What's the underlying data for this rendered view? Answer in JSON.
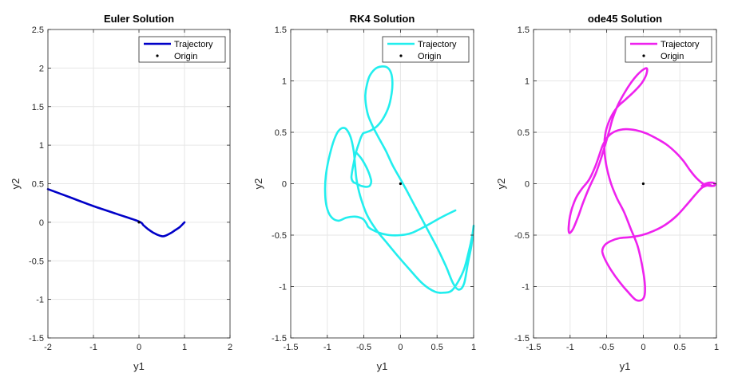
{
  "chart_data": [
    {
      "type": "line",
      "title": "Euler Solution",
      "xlabel": "y1",
      "ylabel": "y2",
      "xlim": [
        -2,
        2
      ],
      "ylim": [
        -1.5,
        2.5
      ],
      "xticks": [
        -2,
        -1,
        0,
        1,
        2
      ],
      "yticks": [
        -1.5,
        -1,
        -0.5,
        0,
        0.5,
        1,
        1.5,
        2,
        2.5
      ],
      "grid": true,
      "legend_position": "top-right",
      "series": [
        {
          "name": "Trajectory",
          "color": "#0000c8",
          "x": [
            -2.0,
            -1.5,
            -1.0,
            -0.5,
            0.0,
            0.1,
            0.2,
            0.3,
            0.4,
            0.5,
            0.55,
            0.6,
            0.7,
            0.8,
            0.9,
            1.0
          ],
          "y": [
            0.43,
            0.32,
            0.21,
            0.11,
            0.01,
            -0.04,
            -0.09,
            -0.13,
            -0.16,
            -0.18,
            -0.18,
            -0.17,
            -0.14,
            -0.1,
            -0.06,
            0.0
          ]
        },
        {
          "name": "Origin",
          "color": "#000000",
          "x": [
            0
          ],
          "y": [
            0
          ],
          "marker": "dot"
        }
      ]
    },
    {
      "type": "line",
      "title": "RK4 Solution",
      "xlabel": "y1",
      "ylabel": "y2",
      "xlim": [
        -1.5,
        1
      ],
      "ylim": [
        -1.5,
        1.5
      ],
      "xticks": [
        -1.5,
        -1,
        -0.5,
        0,
        0.5,
        1
      ],
      "yticks": [
        -1.5,
        -1,
        -0.5,
        0,
        0.5,
        1,
        1.5
      ],
      "grid": true,
      "legend_position": "top-right",
      "series": [
        {
          "name": "Trajectory",
          "color": "#22eeee",
          "x": [
            0.75,
            0.55,
            0.35,
            0.15,
            0.0,
            -0.15,
            -0.28,
            -0.38,
            -0.44,
            -0.47,
            -0.52,
            -0.62,
            -0.74,
            -0.85,
            -0.95,
            -1.01,
            -1.03,
            -1.02,
            -0.98,
            -0.92,
            -0.86,
            -0.8,
            -0.74,
            -0.68,
            -0.64,
            -0.62,
            -0.6,
            -0.55,
            -0.46,
            -0.33,
            -0.18,
            -0.04,
            0.12,
            0.3,
            0.47,
            0.6,
            0.7,
            0.79,
            0.87,
            0.93,
            0.98,
            1.0,
            0.97,
            0.92,
            0.87,
            0.8,
            0.72,
            0.62,
            0.5,
            0.35,
            0.2,
            0.05,
            -0.1,
            -0.2,
            -0.3,
            -0.38,
            -0.44,
            -0.47,
            -0.48,
            -0.46,
            -0.42,
            -0.34,
            -0.26,
            -0.18,
            -0.13,
            -0.11,
            -0.12,
            -0.16,
            -0.24,
            -0.32,
            -0.4,
            -0.47,
            -0.51,
            -0.54,
            -0.57,
            -0.61,
            -0.64,
            -0.66,
            -0.67,
            -0.65,
            -0.6,
            -0.54,
            -0.47,
            -0.42,
            -0.4,
            -0.41,
            -0.44,
            -0.48,
            -0.54,
            -0.6
          ],
          "y": [
            -0.26,
            -0.33,
            -0.41,
            -0.48,
            -0.5,
            -0.5,
            -0.48,
            -0.45,
            -0.42,
            -0.38,
            -0.34,
            -0.32,
            -0.33,
            -0.36,
            -0.32,
            -0.22,
            -0.08,
            0.08,
            0.24,
            0.4,
            0.5,
            0.54,
            0.53,
            0.45,
            0.32,
            0.18,
            0.04,
            -0.12,
            -0.3,
            -0.45,
            -0.58,
            -0.7,
            -0.83,
            -0.97,
            -1.05,
            -1.06,
            -1.04,
            -0.95,
            -0.83,
            -0.67,
            -0.51,
            -0.41,
            -0.6,
            -0.78,
            -0.97,
            -1.03,
            -0.97,
            -0.8,
            -0.62,
            -0.42,
            -0.22,
            -0.02,
            0.17,
            0.32,
            0.45,
            0.56,
            0.66,
            0.76,
            0.86,
            0.96,
            1.05,
            1.12,
            1.14,
            1.13,
            1.08,
            0.99,
            0.88,
            0.75,
            0.63,
            0.56,
            0.52,
            0.5,
            0.49,
            0.45,
            0.39,
            0.3,
            0.2,
            0.12,
            0.06,
            0.02,
            0.0,
            -0.02,
            -0.03,
            -0.02,
            0.02,
            0.06,
            0.12,
            0.18,
            0.25,
            0.3
          ],
          "order_note": ""
        },
        {
          "name": "Origin",
          "color": "#000000",
          "x": [
            0
          ],
          "y": [
            0
          ],
          "marker": "dot"
        }
      ]
    },
    {
      "type": "line",
      "title": "ode45 Solution",
      "xlabel": "y1",
      "ylabel": "y2",
      "xlim": [
        -1.5,
        1
      ],
      "ylim": [
        -1.5,
        1.5
      ],
      "xticks": [
        -1.5,
        -1,
        -0.5,
        0,
        0.5,
        1
      ],
      "yticks": [
        -1.5,
        -1,
        -0.5,
        0,
        0.5,
        1,
        1.5
      ],
      "grid": true,
      "legend_position": "top-right",
      "series": [
        {
          "name": "Trajectory",
          "color": "#ee22ee",
          "x": [
            0.8,
            0.85,
            0.9,
            0.95,
            0.98,
            0.96,
            0.9,
            0.84,
            0.78,
            0.72,
            0.64,
            0.55,
            0.45,
            0.32,
            0.18,
            0.04,
            -0.1,
            -0.24,
            -0.38,
            -0.48,
            -0.55,
            -0.6,
            -0.66,
            -0.74,
            -0.84,
            -0.92,
            -0.99,
            -1.02,
            -1.01,
            -0.96,
            -0.89,
            -0.82,
            -0.74,
            -0.65,
            -0.58,
            -0.52,
            -0.47,
            -0.42,
            -0.35,
            -0.26,
            -0.17,
            -0.08,
            0.0,
            0.05,
            0.04,
            -0.02,
            -0.12,
            -0.24,
            -0.36,
            -0.46,
            -0.52,
            -0.53,
            -0.5,
            -0.44,
            -0.36,
            -0.26,
            -0.17,
            -0.08,
            -0.02,
            0.02,
            0.02,
            -0.02,
            -0.1,
            -0.2,
            -0.32,
            -0.44,
            -0.52,
            -0.56,
            -0.53,
            -0.45,
            -0.33,
            -0.18,
            -0.02,
            0.14,
            0.3,
            0.46,
            0.6,
            0.72,
            0.8,
            0.86,
            0.9,
            0.94,
            0.97,
            0.98
          ],
          "y": [
            -0.02,
            0.0,
            0.01,
            0.01,
            0.0,
            -0.02,
            -0.02,
            -0.01,
            0.02,
            0.06,
            0.13,
            0.22,
            0.3,
            0.38,
            0.44,
            0.49,
            0.52,
            0.53,
            0.51,
            0.46,
            0.38,
            0.28,
            0.16,
            0.04,
            -0.05,
            -0.14,
            -0.28,
            -0.42,
            -0.48,
            -0.44,
            -0.32,
            -0.18,
            -0.04,
            0.1,
            0.24,
            0.38,
            0.5,
            0.63,
            0.76,
            0.88,
            0.98,
            1.06,
            1.11,
            1.12,
            1.06,
            0.98,
            0.9,
            0.82,
            0.74,
            0.62,
            0.48,
            0.32,
            0.16,
            0.0,
            -0.14,
            -0.28,
            -0.44,
            -0.6,
            -0.78,
            -0.96,
            -1.08,
            -1.13,
            -1.13,
            -1.06,
            -0.96,
            -0.84,
            -0.74,
            -0.66,
            -0.6,
            -0.56,
            -0.53,
            -0.52,
            -0.5,
            -0.46,
            -0.4,
            -0.31,
            -0.2,
            -0.1,
            -0.04,
            -0.02,
            -0.01,
            -0.02,
            -0.02,
            -0.01
          ]
        },
        {
          "name": "Origin",
          "color": "#000000",
          "x": [
            0
          ],
          "y": [
            0
          ],
          "marker": "dot"
        }
      ]
    }
  ]
}
